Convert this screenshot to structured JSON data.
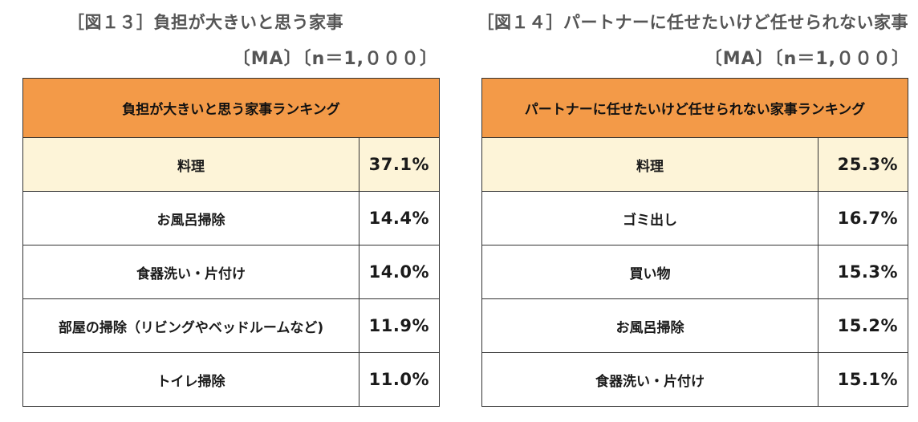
{
  "chart_data": [
    {
      "type": "table",
      "title": "［図１３］負担が大きいと思う家事",
      "subtitle": "〔MA〕〔n＝1,０００〕",
      "header": "負担が大きいと思う家事ランキング",
      "categories": [
        "料理",
        "お風呂掃除",
        "食器洗い・片付け",
        "部屋の掃除（リビングやベッドルームなど)",
        "トイレ掃除"
      ],
      "values": [
        37.1,
        14.4,
        14.0,
        11.9,
        11.0
      ],
      "labels": [
        "37.1%",
        "14.4%",
        "14.0%",
        "11.9%",
        "11.0%"
      ],
      "unit": "%"
    },
    {
      "type": "table",
      "title": "［図１４］パートナーに任せたいけど任せられない家事",
      "subtitle": "〔MA〕〔n＝1,０００〕",
      "header": "パートナーに任せたいけど任せられない家事ランキング",
      "categories": [
        "料理",
        "ゴミ出し",
        "買い物",
        "お風呂掃除",
        "食器洗い・片付け"
      ],
      "values": [
        25.3,
        16.7,
        15.3,
        15.2,
        15.1
      ],
      "labels": [
        "25.3%",
        "16.7%",
        "15.3%",
        "15.2%",
        "15.1%"
      ],
      "unit": "%"
    }
  ],
  "colors": {
    "header_fill": "#f39a48",
    "top_row_fill": "#fdf4d8",
    "title_text": "#555555",
    "border": "#333333"
  }
}
